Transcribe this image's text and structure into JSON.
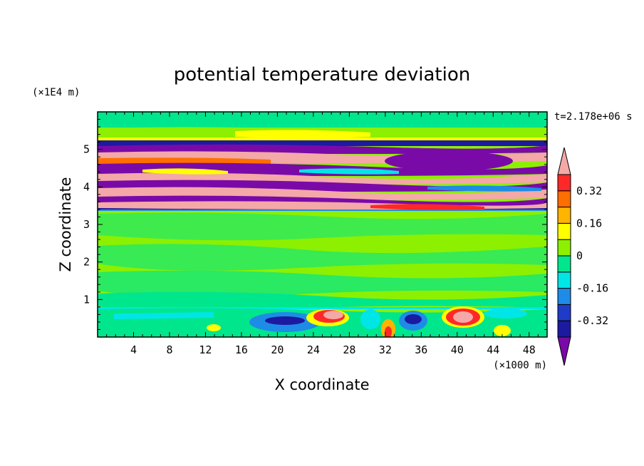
{
  "chart_data": {
    "type": "heatmap",
    "title": "potential temperature deviation",
    "xlabel": "X coordinate",
    "ylabel": "Z coordinate",
    "x_unit": "(×1000 m)",
    "y_unit": "(×1E4 m)",
    "time_label": "t=2.178e+06 s",
    "xlim": [
      0,
      50
    ],
    "ylim": [
      0,
      6
    ],
    "x_ticks": [
      "4",
      "8",
      "12",
      "16",
      "20",
      "24",
      "28",
      "32",
      "36",
      "40",
      "44",
      "48"
    ],
    "y_ticks": [
      "1",
      "2",
      "3",
      "4",
      "5"
    ],
    "colorbar": {
      "labels": [
        "0.32",
        "0.16",
        "0",
        "-0.16",
        "-0.32"
      ],
      "levels": [
        -0.4,
        -0.32,
        -0.24,
        -0.16,
        -0.08,
        0,
        0.08,
        0.16,
        0.24,
        0.32,
        0.4
      ],
      "colors": [
        "#7a0aa8",
        "#1c1aa0",
        "#1e3cc8",
        "#1e8ce6",
        "#00e6e6",
        "#00e68c",
        "#8cf000",
        "#ffff00",
        "#ffb400",
        "#ff6e00",
        "#ff2828",
        "#f4a8a8"
      ]
    }
  }
}
